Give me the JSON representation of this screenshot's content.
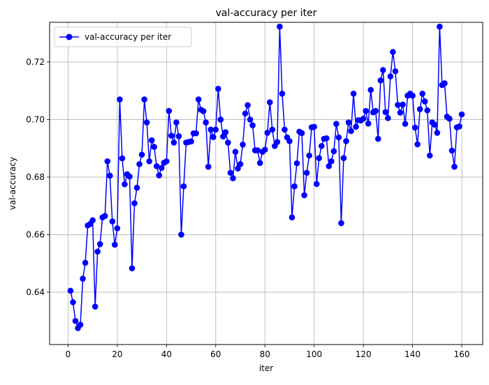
{
  "chart_data": {
    "type": "line",
    "title": "val-accuracy per iter",
    "xlabel": "iter",
    "ylabel": "val-accuracy",
    "xlim": [
      -7.5,
      168.5
    ],
    "ylim": [
      0.6218,
      0.7338
    ],
    "xticks": [
      0,
      20,
      40,
      60,
      80,
      100,
      120,
      140,
      160
    ],
    "yticks": [
      0.64,
      0.66,
      0.68,
      0.7,
      0.72
    ],
    "ytick_labels": [
      "0.64",
      "0.66",
      "0.68",
      "0.70",
      "0.72"
    ],
    "grid": true,
    "legend_position": "top-left",
    "series": [
      {
        "name": "val-accuracy per iter",
        "color": "#0000ff",
        "marker": "circle",
        "x": [
          1,
          2,
          3,
          4,
          5,
          6,
          7,
          8,
          9,
          10,
          11,
          12,
          13,
          14,
          15,
          16,
          17,
          18,
          19,
          20,
          21,
          22,
          23,
          24,
          25,
          26,
          27,
          28,
          29,
          30,
          31,
          32,
          33,
          34,
          35,
          36,
          37,
          38,
          39,
          40,
          41,
          42,
          43,
          44,
          45,
          46,
          47,
          48,
          49,
          50,
          51,
          52,
          53,
          54,
          55,
          56,
          57,
          58,
          59,
          60,
          61,
          62,
          63,
          64,
          65,
          66,
          67,
          68,
          69,
          70,
          71,
          72,
          73,
          74,
          75,
          76,
          77,
          78,
          79,
          80,
          81,
          82,
          83,
          84,
          85,
          86,
          87,
          88,
          89,
          90,
          91,
          92,
          93,
          94,
          95,
          96,
          97,
          98,
          99,
          100,
          101,
          102,
          103,
          104,
          105,
          106,
          107,
          108,
          109,
          110,
          111,
          112,
          113,
          114,
          115,
          116,
          117,
          118,
          119,
          120,
          121,
          122,
          123,
          124,
          125,
          126,
          127,
          128,
          129,
          130,
          131,
          132,
          133,
          134,
          135,
          136,
          137,
          138,
          139,
          140,
          141,
          142,
          143,
          144,
          145,
          146,
          147,
          148,
          149,
          150,
          151,
          152,
          153,
          154,
          155,
          156,
          157,
          158,
          159,
          160
        ],
        "y": [
          0.6405,
          0.6365,
          0.63,
          0.6275,
          0.6287,
          0.6447,
          0.6502,
          0.6632,
          0.6637,
          0.665,
          0.635,
          0.6541,
          0.6567,
          0.666,
          0.6665,
          0.6855,
          0.6805,
          0.6646,
          0.6565,
          0.6622,
          0.707,
          0.6865,
          0.6775,
          0.681,
          0.6802,
          0.6483,
          0.6709,
          0.6763,
          0.6845,
          0.6878,
          0.707,
          0.699,
          0.6855,
          0.6928,
          0.6905,
          0.6838,
          0.6806,
          0.6832,
          0.685,
          0.6855,
          0.703,
          0.6944,
          0.692,
          0.699,
          0.6942,
          0.66,
          0.6768,
          0.692,
          0.6922,
          0.6924,
          0.6952,
          0.6952,
          0.707,
          0.7034,
          0.7029,
          0.699,
          0.6836,
          0.6965,
          0.6939,
          0.6965,
          0.7107,
          0.7,
          0.6941,
          0.6956,
          0.692,
          0.6815,
          0.6796,
          0.6888,
          0.683,
          0.6845,
          0.6913,
          0.7021,
          0.705,
          0.7,
          0.698,
          0.6893,
          0.6893,
          0.6849,
          0.6888,
          0.6895,
          0.6954,
          0.706,
          0.6965,
          0.6908,
          0.6922,
          0.7323,
          0.709,
          0.6965,
          0.6938,
          0.6925,
          0.666,
          0.6768,
          0.6848,
          0.6958,
          0.6953,
          0.6737,
          0.6815,
          0.6875,
          0.6973,
          0.6975,
          0.6776,
          0.6866,
          0.6908,
          0.6933,
          0.6935,
          0.6838,
          0.6855,
          0.689,
          0.6985,
          0.6938,
          0.664,
          0.6866,
          0.6925,
          0.699,
          0.696,
          0.709,
          0.6975,
          0.6998,
          0.6997,
          0.7003,
          0.703,
          0.6986,
          0.7103,
          0.7025,
          0.703,
          0.6933,
          0.7136,
          0.7172,
          0.7026,
          0.7005,
          0.715,
          0.7235,
          0.7168,
          0.7051,
          0.7024,
          0.7052,
          0.6985,
          0.7083,
          0.709,
          0.7083,
          0.6972,
          0.6914,
          0.7036,
          0.709,
          0.7063,
          0.7032,
          0.6875,
          0.699,
          0.6982,
          0.6954,
          0.7323,
          0.712,
          0.7126,
          0.701,
          0.7003,
          0.6892,
          0.6836,
          0.6973,
          0.6976,
          0.7018
        ]
      }
    ]
  }
}
